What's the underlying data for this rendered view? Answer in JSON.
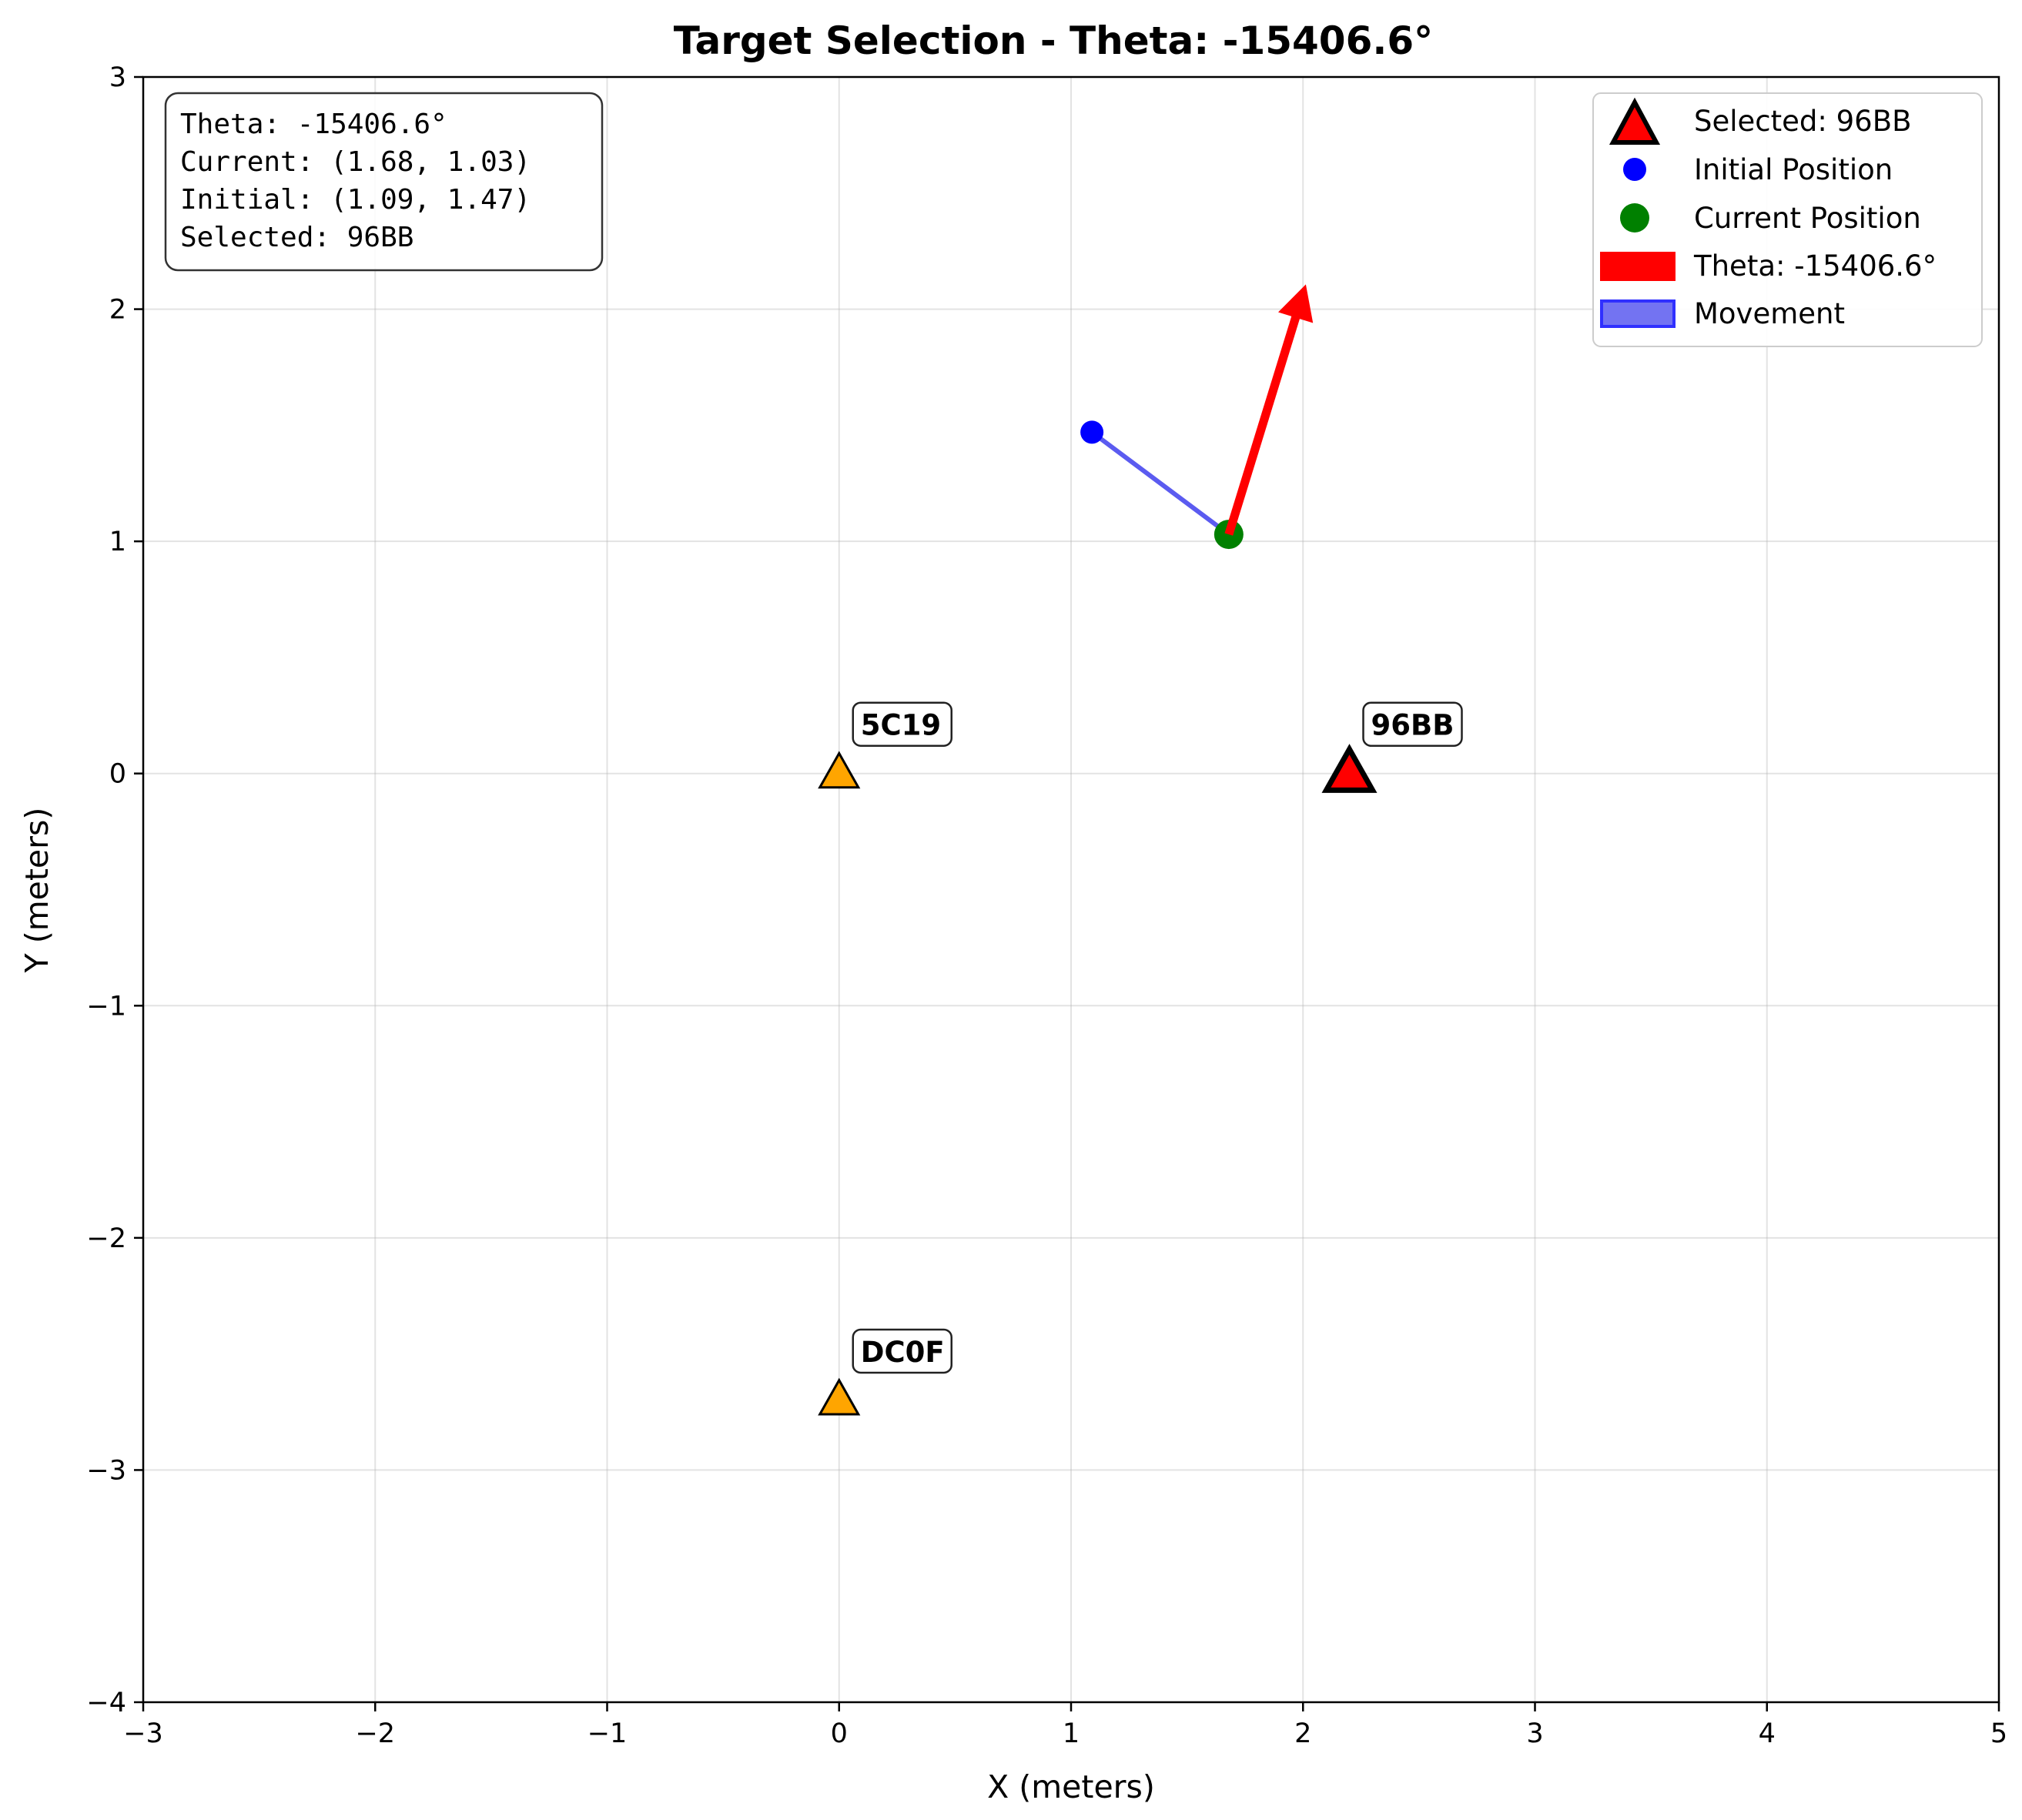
{
  "chart_data": {
    "type": "scatter",
    "title": "Target Selection - Theta: -15406.6°",
    "xlabel": "X (meters)",
    "ylabel": "Y (meters)",
    "xlim": [
      -3,
      5
    ],
    "ylim": [
      -4,
      3
    ],
    "xticks": [
      -3,
      -2,
      -1,
      0,
      1,
      2,
      3,
      4,
      5
    ],
    "yticks": [
      -4,
      -3,
      -2,
      -1,
      0,
      1,
      2,
      3
    ],
    "x_tick_labels": [
      "−3",
      "−2",
      "−1",
      "0",
      "1",
      "2",
      "3",
      "4",
      "5"
    ],
    "y_tick_labels": [
      "−4",
      "−3",
      "−2",
      "−1",
      "0",
      "1",
      "2",
      "3"
    ],
    "grid": true,
    "legend_position": "top-right",
    "targets": [
      {
        "id": "5C19",
        "x": 0.0,
        "y": 0.0,
        "selected": false
      },
      {
        "id": "DC0F",
        "x": 0.0,
        "y": -2.7,
        "selected": false
      },
      {
        "id": "96BB",
        "x": 2.2,
        "y": 0.0,
        "selected": true
      }
    ],
    "initial_position": {
      "x": 1.09,
      "y": 1.47
    },
    "current_position": {
      "x": 1.68,
      "y": 1.03
    },
    "heading_arrow": {
      "x": 1.68,
      "y": 1.03,
      "dx": 0.33,
      "dy": 1.07
    },
    "legend": [
      {
        "label": "Selected: 96BB",
        "symbol": "selected-triangle"
      },
      {
        "label": "Initial Position",
        "symbol": "blue-dot"
      },
      {
        "label": "Current Position",
        "symbol": "green-dot"
      },
      {
        "label": "Theta: -15406.6°",
        "symbol": "red-arrow"
      },
      {
        "label": "Movement",
        "symbol": "blue-line"
      }
    ],
    "info_box": [
      "Theta: -15406.6°",
      "Current: (1.68, 1.03)",
      "Initial: (1.09, 1.47)",
      "Selected: 96BB"
    ],
    "colors": {
      "target": "#ffa500",
      "selected_target": "#ff0000",
      "initial": "#0000ff",
      "current": "#008000",
      "arrow": "#ff0000",
      "movement": "#5b5bf0"
    }
  }
}
